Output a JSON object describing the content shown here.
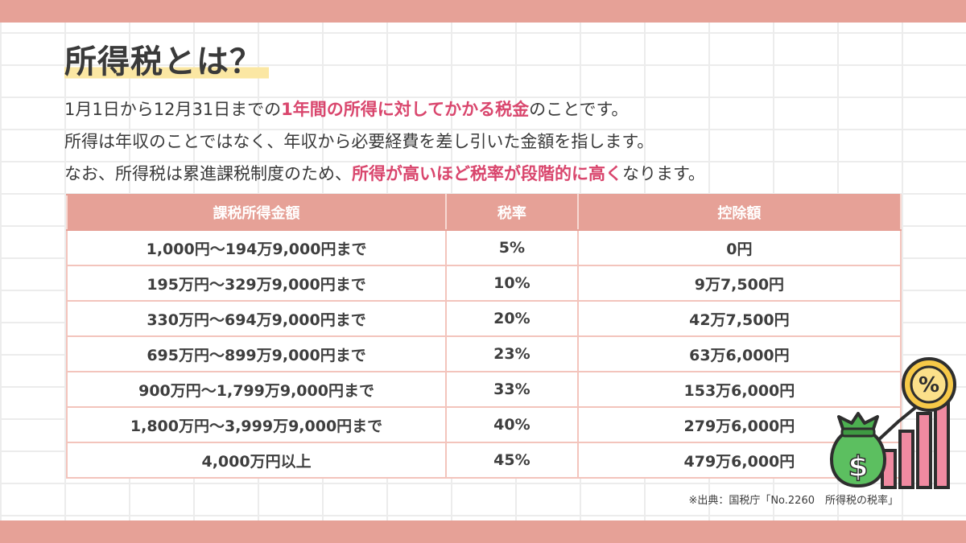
{
  "title": "所得税とは？",
  "intro": {
    "line1": {
      "pre": "1月1日から12月31日までの",
      "hl": "1年間の所得に対してかかる税金",
      "post": "のことです。"
    },
    "line2": "所得は年収のことではなく、年収から必要経費を差し引いた金額を指します。",
    "line3": {
      "pre": "なお、所得税は累進課税制度のため、",
      "hl": "所得が高いほど税率が段階的に高く",
      "post": "なります。"
    }
  },
  "table": {
    "headers": [
      "課税所得金額",
      "税率",
      "控除額"
    ],
    "rows": [
      [
        "1,000円〜194万9,000円まで",
        "5%",
        "0円"
      ],
      [
        "195万円〜329万9,000円まで",
        "10%",
        "9万7,500円"
      ],
      [
        "330万円〜694万9,000円まで",
        "20%",
        "42万7,500円"
      ],
      [
        "695万円〜899万9,000円まで",
        "23%",
        "63万6,000円"
      ],
      [
        "900万円〜1,799万9,000円まで",
        "33%",
        "153万6,000円"
      ],
      [
        "1,800万円〜3,999万9,000円まで",
        "40%",
        "279万6,000円"
      ],
      [
        "4,000万円以上",
        "45%",
        "479万6,000円"
      ]
    ]
  },
  "source": "※出典：国税庁「No.2260　所得税の税率」",
  "illustration": {
    "icons": [
      "money-bag-icon",
      "percent-coin-icon",
      "rising-bar-chart-icon"
    ],
    "bag_symbol": "$",
    "coin_symbol": "%"
  },
  "colors": {
    "accent": "#e6a197",
    "highlight": "#d9466d",
    "marker": "#fbe7a3"
  }
}
